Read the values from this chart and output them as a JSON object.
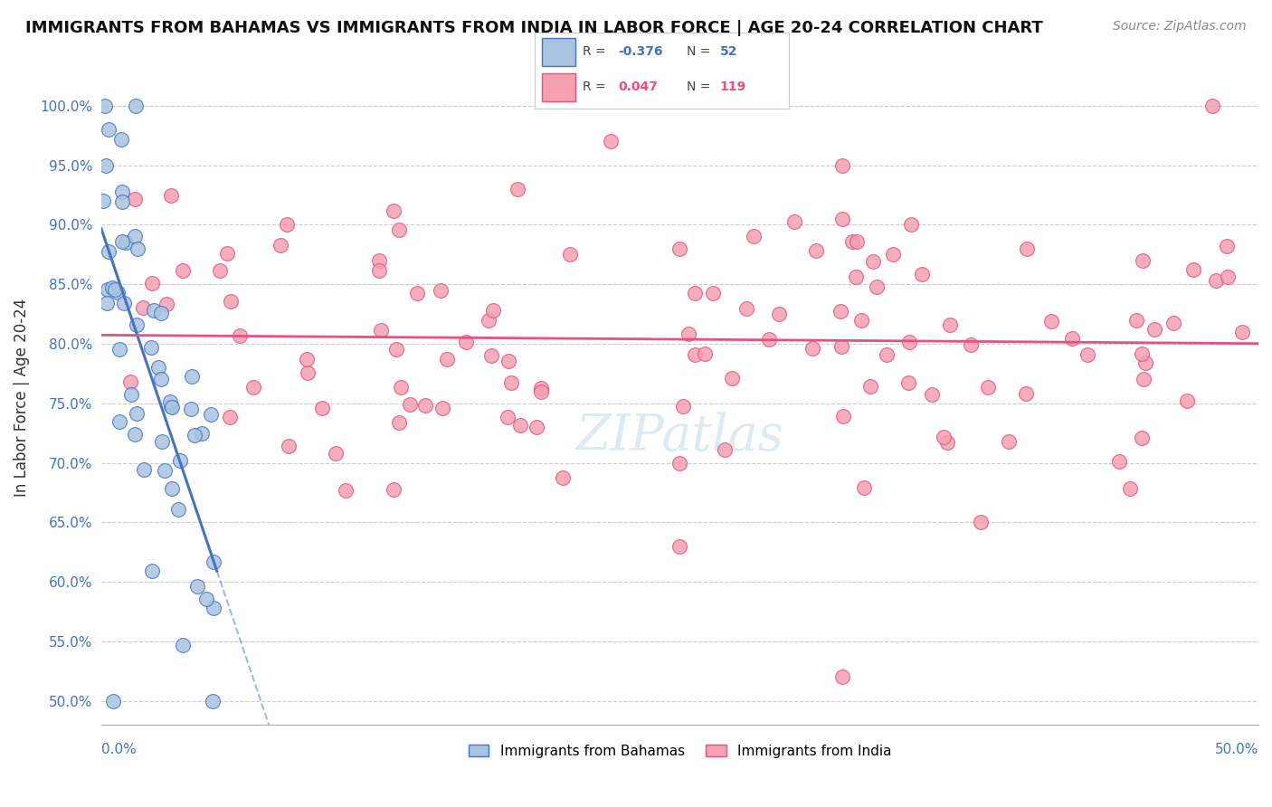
{
  "title": "IMMIGRANTS FROM BAHAMAS VS IMMIGRANTS FROM INDIA IN LABOR FORCE | AGE 20-24 CORRELATION CHART",
  "source": "Source: ZipAtlas.com",
  "ylabel": "In Labor Force | Age 20-24",
  "xlim": [
    0.0,
    50.0
  ],
  "ylim": [
    48.0,
    103.0
  ],
  "r_bahamas": -0.376,
  "n_bahamas": 52,
  "r_india": 0.047,
  "n_india": 119,
  "color_bahamas": "#a8c4e0",
  "color_india": "#f4a0b0",
  "color_bahamas_line": "#4472c4",
  "color_india_line": "#e85080",
  "legend_label_bahamas": "Immigrants from Bahamas",
  "legend_label_india": "Immigrants from India",
  "background_color": "#ffffff",
  "yticks": [
    50,
    55,
    60,
    65,
    70,
    75,
    80,
    85,
    90,
    95,
    100
  ]
}
